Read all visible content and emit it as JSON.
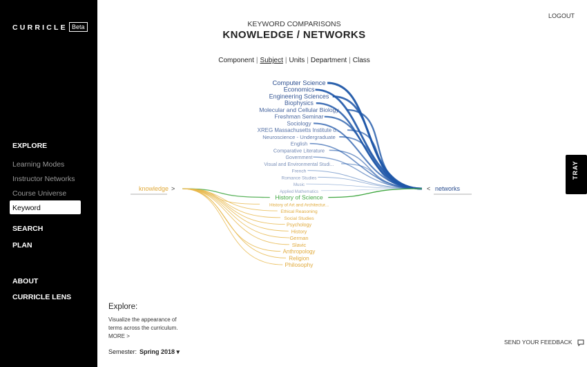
{
  "sidebar": {
    "logo": "CURRICLE",
    "beta": "Beta",
    "explore_heading": "EXPLORE",
    "explore_items": [
      "Learning Modes",
      "Instructor Networks",
      "Course Universe"
    ],
    "active_item": "Keyword Comparisons",
    "search": "SEARCH",
    "plan": "PLAN",
    "about": "ABOUT",
    "lens": "CURRICLE LENS"
  },
  "header": {
    "logout": "LOGOUT",
    "subtitle": "KEYWORD COMPARISONS",
    "title": "KNOWLEDGE / NETWORKS"
  },
  "tabs": {
    "items": [
      "Component",
      "Subject",
      "Units",
      "Department",
      "Class"
    ],
    "active": "Subject"
  },
  "viz": {
    "left_keyword": "knowledge",
    "left_arrow": ">",
    "right_keyword": "networks",
    "right_arrow": "<",
    "colors": {
      "right": "#1f57a8",
      "left": "#e8b74a",
      "shared": "#3ea63f",
      "right_label": "#2a4d8f",
      "left_label": "#e0a93a"
    },
    "right_terms": [
      "Computer Science",
      "Economics",
      "Engineering Sciences",
      "Biophysics",
      "Molecular and Cellular Biology",
      "Freshman Seminar",
      "Sociology",
      "XREG Massachusetts Institute o...",
      "Neuroscience - Undergraduate",
      "English",
      "Comparative Literature",
      "Government",
      "Visual and Environmental Studi...",
      "French",
      "Romance Studies",
      "Music",
      "Applied Mathematics"
    ],
    "shared_terms": [
      "History of Science"
    ],
    "left_terms": [
      "History of Art and Architectur...",
      "Ethical Reasoning",
      "Social Studies",
      "Psychology",
      "History",
      "German",
      "Slavic",
      "Anthropology",
      "Religion",
      "Philosophy"
    ]
  },
  "explore": {
    "title": "Explore:",
    "description": "Visualize the appearance of terms across the curriculum.",
    "more": "MORE >"
  },
  "semester": {
    "label": "Semester:",
    "value": "Spring 2018 ▾"
  },
  "feedback": "SEND YOUR FEEDBACK",
  "tray": "TRAY"
}
